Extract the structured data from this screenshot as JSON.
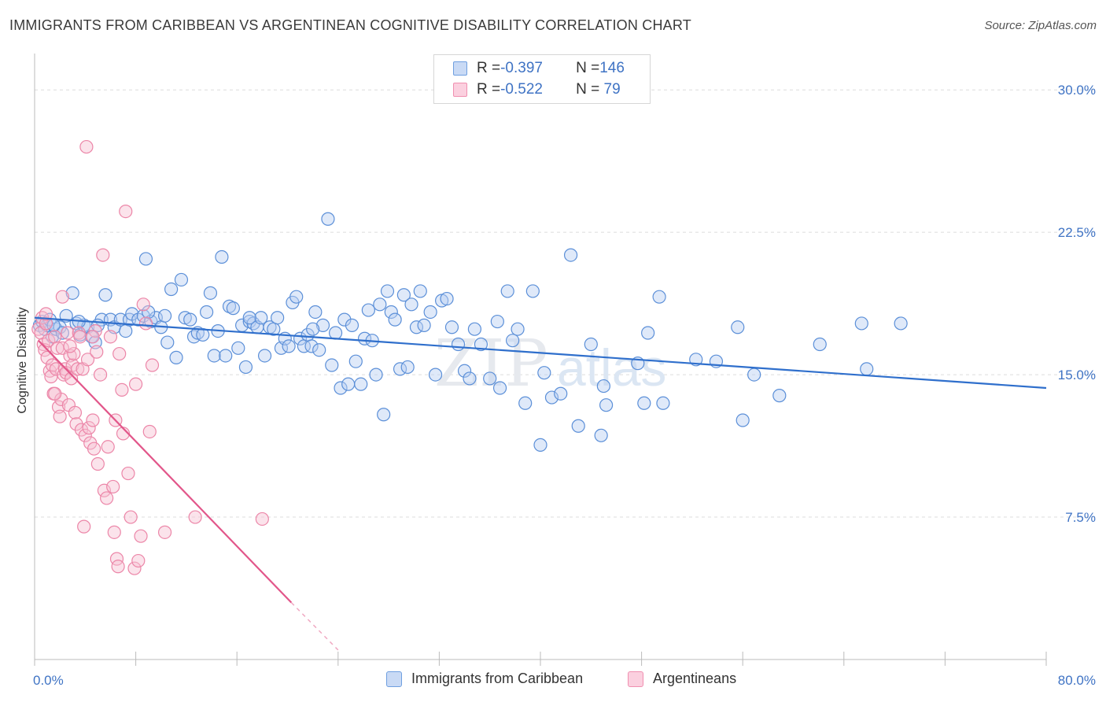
{
  "header": {
    "title": "IMMIGRANTS FROM CARIBBEAN VS ARGENTINEAN COGNITIVE DISABILITY CORRELATION CHART",
    "source": "Source: ZipAtlas.com"
  },
  "legend": {
    "rows": [
      {
        "r_label": "R = ",
        "r_value": "-0.397",
        "n_label": "N = ",
        "n_value": "146",
        "color": "#6f9fe0"
      },
      {
        "r_label": "R = ",
        "r_value": "-0.522",
        "n_label": "N = ",
        "n_value": " 79",
        "color": "#f08fb0"
      }
    ]
  },
  "watermark": {
    "zip": "ZIP",
    "atlas": "atlas"
  },
  "colors": {
    "blue": "#5b8fd8",
    "blue_line": "#2f6fcc",
    "pink": "#ec86a8",
    "pink_line": "#e2568a",
    "axis_text": "#3f73c4"
  },
  "chart_data": {
    "type": "scatter",
    "title": "IMMIGRANTS FROM CARIBBEAN VS ARGENTINEAN COGNITIVE DISABILITY CORRELATION CHART",
    "xlabel": "",
    "ylabel": "Cognitive Disability",
    "xlim": [
      0,
      80
    ],
    "ylim": [
      0,
      31.5
    ],
    "x_tick_labels": [
      "0.0%",
      "80.0%"
    ],
    "y_ticks": [
      7.5,
      15.0,
      22.5,
      30.0
    ],
    "y_tick_labels": [
      "7.5%",
      "15.0%",
      "22.5%",
      "30.0%"
    ],
    "grid": true,
    "legend_position": "top-center",
    "series": [
      {
        "name": "Immigrants from Caribbean",
        "r": -0.397,
        "n": 146,
        "trend": {
          "x": [
            0,
            80
          ],
          "y": [
            18.0,
            14.3
          ]
        },
        "points": [
          [
            0.4,
            17.6
          ],
          [
            0.6,
            17.8
          ],
          [
            0.8,
            17.4
          ],
          [
            1.0,
            17.6
          ],
          [
            1.2,
            17.9
          ],
          [
            1.4,
            17.0
          ],
          [
            1.7,
            17.4
          ],
          [
            2.0,
            17.5
          ],
          [
            2.2,
            17.2
          ],
          [
            2.5,
            18.1
          ],
          [
            3.0,
            19.3
          ],
          [
            3.3,
            17.7
          ],
          [
            3.6,
            17.1
          ],
          [
            3.9,
            17.6
          ],
          [
            4.2,
            17.5
          ],
          [
            4.5,
            17.0
          ],
          [
            4.8,
            16.7
          ],
          [
            5.3,
            17.9
          ],
          [
            5.6,
            19.2
          ],
          [
            6.0,
            17.9
          ],
          [
            6.3,
            17.5
          ],
          [
            6.8,
            17.9
          ],
          [
            7.2,
            17.3
          ],
          [
            7.5,
            17.9
          ],
          [
            7.7,
            18.2
          ],
          [
            8.2,
            17.9
          ],
          [
            8.6,
            18.1
          ],
          [
            8.8,
            21.1
          ],
          [
            9.2,
            17.8
          ],
          [
            9.6,
            18.0
          ],
          [
            10.0,
            17.5
          ],
          [
            10.3,
            18.1
          ],
          [
            10.5,
            16.7
          ],
          [
            10.8,
            19.5
          ],
          [
            11.2,
            15.9
          ],
          [
            11.6,
            20.0
          ],
          [
            11.9,
            18.0
          ],
          [
            12.3,
            17.9
          ],
          [
            12.6,
            17.0
          ],
          [
            12.9,
            17.2
          ],
          [
            13.3,
            17.1
          ],
          [
            13.6,
            18.3
          ],
          [
            13.9,
            19.3
          ],
          [
            14.2,
            16.0
          ],
          [
            14.5,
            17.3
          ],
          [
            14.8,
            21.2
          ],
          [
            15.1,
            16.0
          ],
          [
            15.4,
            18.6
          ],
          [
            15.7,
            18.5
          ],
          [
            16.1,
            16.4
          ],
          [
            16.4,
            17.6
          ],
          [
            16.7,
            15.4
          ],
          [
            17.0,
            17.8
          ],
          [
            17.3,
            17.7
          ],
          [
            17.6,
            17.5
          ],
          [
            17.9,
            18.0
          ],
          [
            18.2,
            16.0
          ],
          [
            18.6,
            17.5
          ],
          [
            18.9,
            17.4
          ],
          [
            19.2,
            18.0
          ],
          [
            19.5,
            16.4
          ],
          [
            19.8,
            16.9
          ],
          [
            20.1,
            16.5
          ],
          [
            20.4,
            18.8
          ],
          [
            20.7,
            19.1
          ],
          [
            21.0,
            16.9
          ],
          [
            21.3,
            16.5
          ],
          [
            21.6,
            17.1
          ],
          [
            21.9,
            16.5
          ],
          [
            22.2,
            18.3
          ],
          [
            22.5,
            16.3
          ],
          [
            22.8,
            17.6
          ],
          [
            23.2,
            23.2
          ],
          [
            23.5,
            15.5
          ],
          [
            23.8,
            17.2
          ],
          [
            24.2,
            14.3
          ],
          [
            24.5,
            17.9
          ],
          [
            24.8,
            14.5
          ],
          [
            25.1,
            17.6
          ],
          [
            25.4,
            15.7
          ],
          [
            25.8,
            14.5
          ],
          [
            26.1,
            16.9
          ],
          [
            26.4,
            18.4
          ],
          [
            26.7,
            16.8
          ],
          [
            27.0,
            15.0
          ],
          [
            27.3,
            18.7
          ],
          [
            27.6,
            12.9
          ],
          [
            27.9,
            19.4
          ],
          [
            28.2,
            18.3
          ],
          [
            28.5,
            17.9
          ],
          [
            28.9,
            15.3
          ],
          [
            29.2,
            19.2
          ],
          [
            29.5,
            15.4
          ],
          [
            29.8,
            18.7
          ],
          [
            30.2,
            17.5
          ],
          [
            30.5,
            19.4
          ],
          [
            30.8,
            17.6
          ],
          [
            31.3,
            18.3
          ],
          [
            31.7,
            15.0
          ],
          [
            32.2,
            18.9
          ],
          [
            32.6,
            19.0
          ],
          [
            33.0,
            17.5
          ],
          [
            33.5,
            16.6
          ],
          [
            34.0,
            15.2
          ],
          [
            34.4,
            14.8
          ],
          [
            34.8,
            17.4
          ],
          [
            35.3,
            16.6
          ],
          [
            36.0,
            14.8
          ],
          [
            36.6,
            17.8
          ],
          [
            36.8,
            14.3
          ],
          [
            37.4,
            19.4
          ],
          [
            37.8,
            16.8
          ],
          [
            38.2,
            17.4
          ],
          [
            38.8,
            13.5
          ],
          [
            39.4,
            19.4
          ],
          [
            40.0,
            11.3
          ],
          [
            40.3,
            15.1
          ],
          [
            40.9,
            13.8
          ],
          [
            41.6,
            14.0
          ],
          [
            42.4,
            21.3
          ],
          [
            43.0,
            12.3
          ],
          [
            44.0,
            16.6
          ],
          [
            44.8,
            11.8
          ],
          [
            45.0,
            14.4
          ],
          [
            45.2,
            13.4
          ],
          [
            47.7,
            15.6
          ],
          [
            48.2,
            13.5
          ],
          [
            48.5,
            17.2
          ],
          [
            49.4,
            19.1
          ],
          [
            49.7,
            13.5
          ],
          [
            52.3,
            15.8
          ],
          [
            53.9,
            15.7
          ],
          [
            55.6,
            17.5
          ],
          [
            56.0,
            12.6
          ],
          [
            56.9,
            15.0
          ],
          [
            58.9,
            13.9
          ],
          [
            62.1,
            16.6
          ],
          [
            65.4,
            17.7
          ],
          [
            65.8,
            15.3
          ],
          [
            68.5,
            17.7
          ],
          [
            1.5,
            17.6
          ],
          [
            3.5,
            17.8
          ],
          [
            5.0,
            17.6
          ],
          [
            9.0,
            18.3
          ],
          [
            17.0,
            18.0
          ],
          [
            22.0,
            17.4
          ]
        ]
      },
      {
        "name": "Argentineans",
        "r": -0.522,
        "n": 79,
        "trend": {
          "x": [
            0.3,
            20.3
          ],
          "y": [
            16.8,
            3.0
          ]
        },
        "trend_dashed": {
          "x": [
            20.3,
            24.0
          ],
          "y": [
            3.0,
            0.5
          ]
        },
        "points": [
          [
            0.3,
            17.4
          ],
          [
            0.5,
            17.2
          ],
          [
            0.6,
            18.0
          ],
          [
            0.7,
            16.6
          ],
          [
            0.8,
            16.3
          ],
          [
            0.9,
            17.7
          ],
          [
            1.0,
            15.9
          ],
          [
            1.1,
            16.8
          ],
          [
            1.2,
            15.2
          ],
          [
            1.3,
            14.9
          ],
          [
            1.4,
            15.5
          ],
          [
            1.5,
            14.0
          ],
          [
            1.6,
            17.0
          ],
          [
            1.7,
            15.3
          ],
          [
            1.8,
            16.4
          ],
          [
            1.9,
            13.3
          ],
          [
            2.0,
            12.8
          ],
          [
            2.1,
            13.7
          ],
          [
            2.2,
            16.4
          ],
          [
            2.3,
            15.0
          ],
          [
            2.4,
            15.3
          ],
          [
            2.5,
            15.1
          ],
          [
            2.6,
            17.2
          ],
          [
            2.7,
            13.4
          ],
          [
            2.8,
            16.0
          ],
          [
            2.9,
            14.8
          ],
          [
            3.0,
            15.5
          ],
          [
            3.1,
            16.1
          ],
          [
            3.2,
            13.0
          ],
          [
            3.3,
            12.4
          ],
          [
            3.4,
            15.3
          ],
          [
            3.5,
            17.2
          ],
          [
            3.7,
            12.1
          ],
          [
            3.8,
            15.3
          ],
          [
            4.0,
            11.8
          ],
          [
            4.2,
            15.8
          ],
          [
            4.3,
            12.2
          ],
          [
            4.4,
            11.4
          ],
          [
            4.6,
            12.6
          ],
          [
            4.7,
            11.1
          ],
          [
            4.8,
            17.3
          ],
          [
            4.9,
            16.2
          ],
          [
            5.0,
            10.3
          ],
          [
            5.2,
            15.0
          ],
          [
            5.4,
            21.3
          ],
          [
            5.5,
            8.9
          ],
          [
            5.7,
            8.5
          ],
          [
            5.8,
            11.2
          ],
          [
            6.0,
            17.0
          ],
          [
            6.2,
            9.1
          ],
          [
            6.4,
            12.6
          ],
          [
            6.5,
            5.3
          ],
          [
            6.6,
            4.9
          ],
          [
            6.7,
            16.1
          ],
          [
            6.9,
            14.2
          ],
          [
            7.0,
            11.9
          ],
          [
            7.2,
            23.6
          ],
          [
            7.4,
            9.8
          ],
          [
            7.6,
            7.5
          ],
          [
            7.9,
            4.8
          ],
          [
            8.0,
            14.5
          ],
          [
            8.2,
            5.2
          ],
          [
            8.4,
            6.5
          ],
          [
            8.6,
            18.7
          ],
          [
            8.8,
            17.7
          ],
          [
            9.1,
            12.0
          ],
          [
            9.3,
            15.5
          ],
          [
            10.3,
            6.7
          ],
          [
            12.7,
            7.5
          ],
          [
            18.0,
            7.4
          ],
          [
            4.1,
            27.0
          ],
          [
            3.9,
            7.0
          ],
          [
            6.3,
            6.7
          ],
          [
            2.8,
            16.5
          ],
          [
            1.6,
            14.0
          ],
          [
            3.6,
            17.0
          ],
          [
            0.9,
            18.2
          ],
          [
            2.2,
            19.1
          ],
          [
            4.6,
            17.0
          ]
        ]
      }
    ]
  },
  "bottom_legend": {
    "items": [
      {
        "label": "Immigrants from Caribbean"
      },
      {
        "label": "Argentineans"
      }
    ]
  }
}
